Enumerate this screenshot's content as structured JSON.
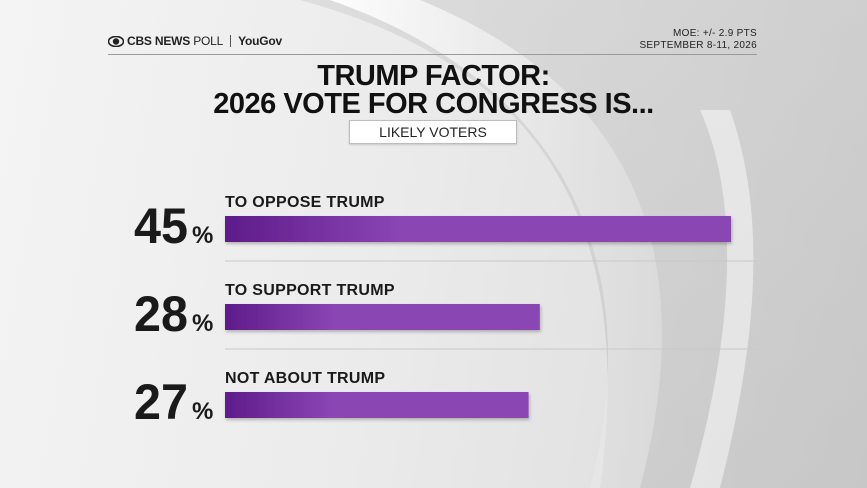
{
  "header": {
    "brand": "CBS NEWS",
    "poll": "POLL",
    "partner": "YouGov",
    "moe": "MOE: +/- 2.9 PTS",
    "dates": "SEPTEMBER 8-11, 2026"
  },
  "colors": {
    "bar_dark": "#5e1c8a",
    "bar_light": "#8a46b3"
  },
  "chart_data": {
    "type": "bar",
    "orientation": "horizontal",
    "title": "TRUMP FACTOR: 2026 VOTE FOR CONGRESS IS...",
    "title_lines": [
      "TRUMP FACTOR:",
      "2026 VOTE FOR CONGRESS IS..."
    ],
    "subtitle": "LIKELY VOTERS",
    "categories": [
      "TO OPPOSE TRUMP",
      "TO SUPPORT TRUMP",
      "NOT ABOUT TRUMP"
    ],
    "values": [
      45,
      28,
      27
    ],
    "value_labels": [
      "45",
      "28",
      "27"
    ],
    "unit": "%",
    "xlim": [
      0,
      45
    ],
    "grid": false,
    "legend": "none"
  }
}
